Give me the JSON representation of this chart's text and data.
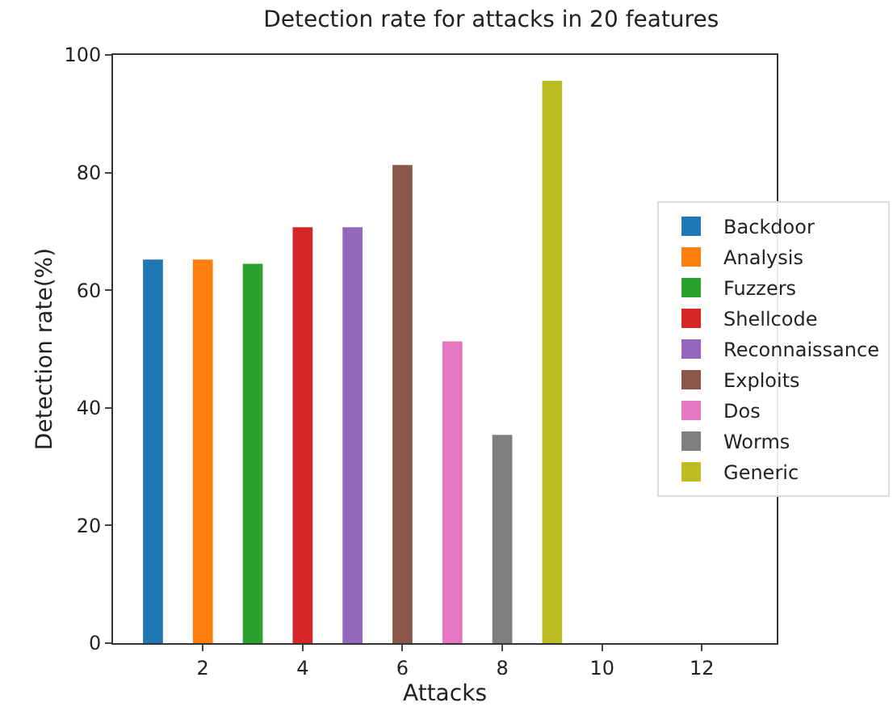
{
  "chart_data": {
    "type": "bar",
    "title": "Detection rate for attacks in 20 features",
    "xlabel": "Attacks",
    "ylabel": "Detection rate(%)",
    "x": [
      1,
      2,
      3,
      4,
      5,
      6,
      7,
      8,
      9
    ],
    "series": [
      {
        "name": "Backdoor",
        "color": "#1f77b4",
        "values": [
          65.2,
          null,
          null,
          null,
          null,
          null,
          null,
          null,
          null
        ]
      },
      {
        "name": "Analysis",
        "color": "#ff7f0e",
        "values": [
          null,
          65.2,
          null,
          null,
          null,
          null,
          null,
          null,
          null
        ]
      },
      {
        "name": "Fuzzers",
        "color": "#2ca02c",
        "values": [
          null,
          null,
          64.5,
          null,
          null,
          null,
          null,
          null,
          null
        ]
      },
      {
        "name": "Shellcode",
        "color": "#d62728",
        "values": [
          null,
          null,
          null,
          70.7,
          null,
          null,
          null,
          null,
          null
        ]
      },
      {
        "name": "Reconnaissance",
        "color": "#9467bd",
        "values": [
          null,
          null,
          null,
          null,
          70.7,
          null,
          null,
          null,
          null
        ]
      },
      {
        "name": "Exploits",
        "color": "#8c564b",
        "values": [
          null,
          null,
          null,
          null,
          null,
          81.3,
          null,
          null,
          null
        ]
      },
      {
        "name": "Dos",
        "color": "#e377c2",
        "values": [
          null,
          null,
          null,
          null,
          null,
          null,
          51.3,
          null,
          null
        ]
      },
      {
        "name": "Worms",
        "color": "#7f7f7f",
        "values": [
          null,
          null,
          null,
          null,
          null,
          null,
          null,
          35.4,
          null
        ]
      },
      {
        "name": "Generic",
        "color": "#bcbd22",
        "values": [
          null,
          null,
          null,
          null,
          null,
          null,
          null,
          null,
          95.6
        ]
      }
    ],
    "xlim": [
      0.2,
      13.5
    ],
    "xticks": [
      2,
      4,
      6,
      8,
      10,
      12
    ],
    "ylim": [
      0,
      100
    ],
    "yticks": [
      0,
      20,
      40,
      60,
      80,
      100
    ],
    "grid": false,
    "legend": "right"
  }
}
